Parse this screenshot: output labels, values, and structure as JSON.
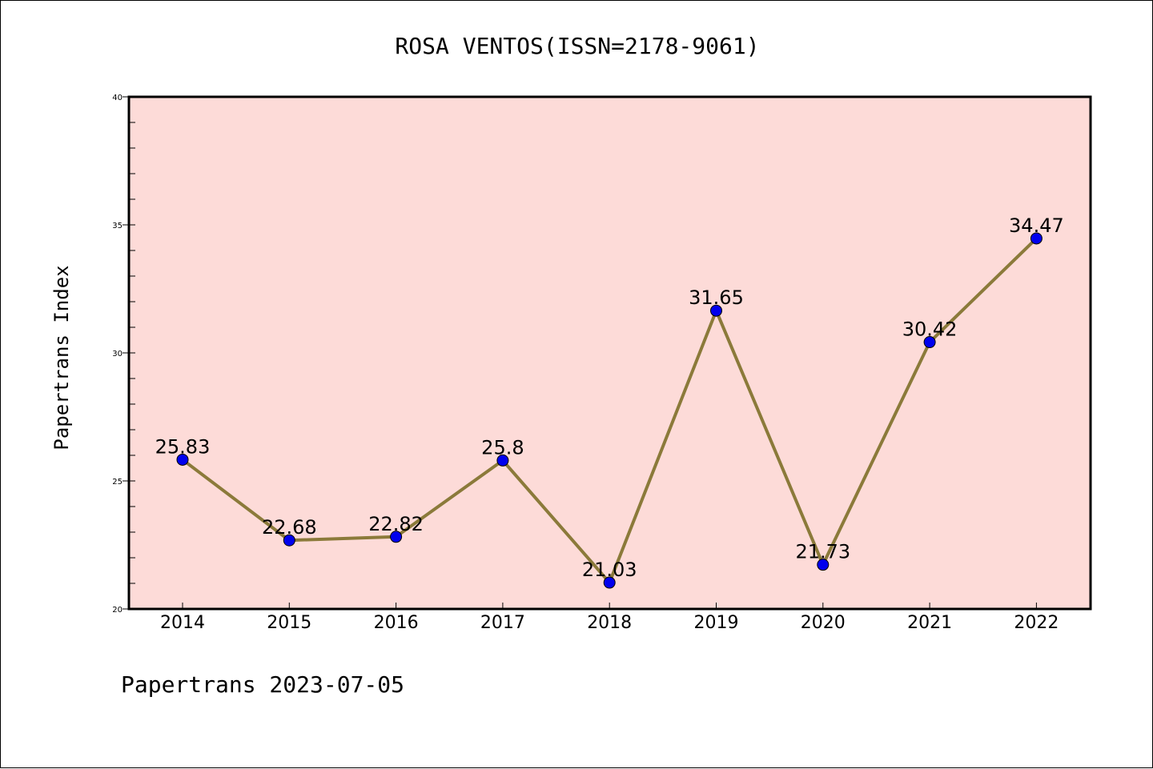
{
  "chart_data": {
    "type": "line",
    "title": "ROSA VENTOS(ISSN=2178-9061)",
    "xlabel": "",
    "ylabel": "Papertrans Index",
    "categories": [
      "2014",
      "2015",
      "2016",
      "2017",
      "2018",
      "2019",
      "2020",
      "2021",
      "2022"
    ],
    "series": [
      {
        "values": [
          25.83,
          22.68,
          22.82,
          25.8,
          21.03,
          31.65,
          21.73,
          30.42,
          34.47
        ],
        "data_labels": [
          "25.83",
          "22.68",
          "22.82",
          "25.8",
          "21.03",
          "31.65",
          "21.73",
          "30.42",
          "34.47"
        ]
      }
    ],
    "ylim": [
      20,
      40
    ],
    "yticks": [
      20,
      25,
      30,
      35,
      40
    ],
    "ytick_labels": [
      "20",
      "25",
      "30",
      "35",
      "40"
    ],
    "grid": false,
    "legend": "none",
    "colors": {
      "plot_background": "#fddbd8",
      "line": "#8b7a3a",
      "marker": "#0000ee"
    }
  },
  "footer": "Papertrans 2023-07-05"
}
